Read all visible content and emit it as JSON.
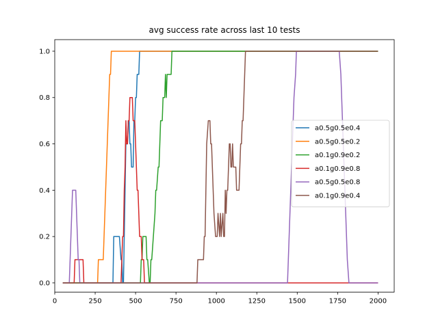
{
  "chart_data": {
    "type": "line",
    "title": "avg success rate across last 10 tests",
    "xlabel": "",
    "ylabel": "",
    "xlim": [
      0,
      2100
    ],
    "ylim": [
      -0.04,
      1.05
    ],
    "x_ticks": [
      0,
      250,
      500,
      750,
      1000,
      1250,
      1500,
      1750,
      2000
    ],
    "y_ticks": [
      0.0,
      0.2,
      0.4,
      0.6,
      0.8,
      1.0
    ],
    "x_tick_labels": [
      "0",
      "250",
      "500",
      "750",
      "1000",
      "1250",
      "1500",
      "1750",
      "2000"
    ],
    "y_tick_labels": [
      "0.0",
      "0.2",
      "0.4",
      "0.6",
      "0.8",
      "1.0"
    ],
    "grid": false,
    "legend_position": "center-right",
    "series": [
      {
        "name": "a0.5g0.5e0.4",
        "color": "#1f77b4",
        "x": [
          50,
          360,
          365,
          400,
          410,
          415,
          420,
          425,
          440,
          445,
          450,
          455,
          460,
          465,
          470,
          475,
          480,
          485,
          490,
          495,
          500,
          505,
          510,
          520,
          525,
          530,
          535,
          540,
          2000
        ],
        "y": [
          0.0,
          0.0,
          0.2,
          0.2,
          0.1,
          0.1,
          0.0,
          0.0,
          0.6,
          0.6,
          0.6,
          0.7,
          0.7,
          0.6,
          0.6,
          0.5,
          0.5,
          0.5,
          0.7,
          0.7,
          0.8,
          0.8,
          0.9,
          0.9,
          1.0,
          1.0,
          1.0,
          1.0,
          1.0
        ]
      },
      {
        "name": "a0.5g0.5e0.2",
        "color": "#ff7f0e",
        "x": [
          50,
          265,
          270,
          300,
          305,
          310,
          340,
          345,
          350,
          355,
          360,
          2000
        ],
        "y": [
          0.0,
          0.0,
          0.1,
          0.1,
          0.2,
          0.3,
          0.9,
          0.9,
          1.0,
          1.0,
          1.0,
          1.0
        ]
      },
      {
        "name": "a0.1g0.9e0.2",
        "color": "#2ca02c",
        "x": [
          50,
          530,
          535,
          540,
          545,
          550,
          560,
          565,
          570,
          575,
          585,
          590,
          595,
          600,
          610,
          620,
          625,
          630,
          640,
          645,
          650,
          655,
          665,
          670,
          680,
          685,
          690,
          695,
          700,
          705,
          710,
          715,
          720,
          725,
          735,
          740,
          2000
        ],
        "y": [
          0.0,
          0.0,
          0.1,
          0.1,
          0.2,
          0.2,
          0.2,
          0.2,
          0.1,
          0.1,
          0.0,
          0.0,
          0.1,
          0.1,
          0.2,
          0.3,
          0.4,
          0.4,
          0.5,
          0.5,
          0.6,
          0.7,
          0.7,
          0.8,
          0.8,
          0.9,
          0.8,
          0.9,
          0.9,
          0.9,
          0.9,
          0.9,
          0.9,
          1.0,
          1.0,
          1.0,
          1.0
        ]
      },
      {
        "name": "a0.1g0.9e0.8",
        "color": "#d62728",
        "x": [
          50,
          120,
          125,
          155,
          160,
          165,
          170,
          175,
          180,
          410,
          420,
          425,
          430,
          435,
          440,
          445,
          450,
          455,
          460,
          465,
          470,
          480,
          485,
          490,
          495,
          505,
          510,
          515,
          520,
          525,
          530,
          535,
          540,
          545,
          550,
          555,
          560,
          565,
          2000
        ],
        "y": [
          0.0,
          0.0,
          0.1,
          0.1,
          0.1,
          0.1,
          0.1,
          0.1,
          0.0,
          0.0,
          0.2,
          0.2,
          0.4,
          0.5,
          0.7,
          0.6,
          0.6,
          0.7,
          0.7,
          0.8,
          0.8,
          0.8,
          0.7,
          0.7,
          0.7,
          0.5,
          0.4,
          0.4,
          0.3,
          0.2,
          0.2,
          0.2,
          0.1,
          0.1,
          0.1,
          0.0,
          0.0,
          0.0,
          0.0
        ]
      },
      {
        "name": "a0.5g0.5e0.8",
        "color": "#9467bd",
        "x": [
          50,
          90,
          95,
          100,
          105,
          110,
          130,
          135,
          140,
          145,
          150,
          155,
          160,
          1440,
          1445,
          1450,
          1455,
          1460,
          1470,
          1480,
          1490,
          1495,
          1500,
          1760,
          1770,
          1780,
          1790,
          1800,
          1810,
          1820,
          2000
        ],
        "y": [
          0.0,
          0.0,
          0.1,
          0.2,
          0.3,
          0.4,
          0.4,
          0.3,
          0.2,
          0.1,
          0.1,
          0.0,
          0.0,
          0.0,
          0.1,
          0.2,
          0.3,
          0.4,
          0.6,
          0.8,
          0.9,
          1.0,
          1.0,
          1.0,
          0.9,
          0.7,
          0.5,
          0.3,
          0.1,
          0.0,
          0.0
        ]
      },
      {
        "name": "a0.1g0.9e0.4",
        "color": "#8c564b",
        "x": [
          50,
          880,
          885,
          920,
          925,
          930,
          935,
          940,
          950,
          960,
          965,
          970,
          975,
          980,
          985,
          995,
          1000,
          1005,
          1010,
          1020,
          1025,
          1030,
          1040,
          1045,
          1050,
          1055,
          1060,
          1065,
          1070,
          1075,
          1080,
          1085,
          1090,
          1095,
          1100,
          1105,
          1110,
          1120,
          1125,
          1130,
          1140,
          1145,
          1150,
          1155,
          1160,
          1165,
          1170,
          1175,
          1180,
          1185,
          1190,
          2000
        ],
        "y": [
          0.0,
          0.0,
          0.1,
          0.1,
          0.2,
          0.2,
          0.4,
          0.6,
          0.7,
          0.7,
          0.6,
          0.6,
          0.5,
          0.4,
          0.3,
          0.2,
          0.2,
          0.2,
          0.3,
          0.2,
          0.3,
          0.2,
          0.3,
          0.2,
          0.2,
          0.4,
          0.3,
          0.4,
          0.4,
          0.5,
          0.6,
          0.6,
          0.5,
          0.5,
          0.6,
          0.5,
          0.5,
          0.5,
          0.4,
          0.4,
          0.4,
          0.5,
          0.6,
          0.6,
          0.7,
          0.7,
          0.8,
          0.9,
          1.0,
          1.0,
          1.0,
          1.0
        ]
      }
    ]
  }
}
